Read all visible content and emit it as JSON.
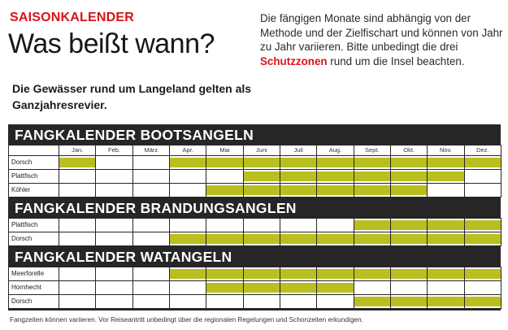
{
  "kicker": "SAISONKALENDER",
  "headline": "Was beißt wann?",
  "lead": "Die Gewässer rund um Langeland gelten als Ganzjahresrevier.",
  "info": {
    "before": "Die fängigen Monate sind abhängig von der Methode und der Zielfischart und können von Jahr zu Jahr variieren. Bitte unbedingt die drei ",
    "highlight": "Schutzzonen",
    "after": " rund um die Insel beachten."
  },
  "colors": {
    "accent": "#d7141b",
    "bar": "#b9bf1f",
    "band": "#262626"
  },
  "months": [
    "Jan.",
    "Feb.",
    "März",
    "Apr.",
    "Mai",
    "Juni",
    "Juli",
    "Aug.",
    "Sept.",
    "Okt.",
    "Nov.",
    "Dez."
  ],
  "sections": [
    {
      "title": "FANGKALENDER BOOTSANGELN",
      "show_months": true,
      "rows": [
        {
          "fish": "Dorsch",
          "months": [
            1,
            0,
            0,
            1,
            1,
            1,
            1,
            1,
            1,
            1,
            1,
            1
          ]
        },
        {
          "fish": "Plattfisch",
          "months": [
            0,
            0,
            0,
            0,
            0,
            1,
            1,
            1,
            1,
            1,
            1,
            0
          ]
        },
        {
          "fish": "Köhler",
          "months": [
            0,
            0,
            0,
            0,
            1,
            1,
            1,
            1,
            1,
            1,
            0,
            0
          ]
        }
      ]
    },
    {
      "title": "FANGKALENDER BRANDUNGSANGLEN",
      "show_months": false,
      "rows": [
        {
          "fish": "Plattfisch",
          "months": [
            0,
            0,
            0,
            0,
            0,
            0,
            0,
            0,
            1,
            1,
            1,
            1
          ]
        },
        {
          "fish": "Dorsch",
          "months": [
            0,
            0,
            0,
            1,
            1,
            1,
            1,
            1,
            1,
            1,
            1,
            1
          ]
        }
      ]
    },
    {
      "title": "FANGKALENDER WATANGELN",
      "show_months": false,
      "rows": [
        {
          "fish": "Meerforelle",
          "months": [
            0,
            0,
            0,
            1,
            1,
            1,
            1,
            1,
            1,
            1,
            1,
            1
          ]
        },
        {
          "fish": "Hornhecht",
          "months": [
            0,
            0,
            0,
            0,
            1,
            1,
            1,
            1,
            0,
            0,
            0,
            0
          ]
        },
        {
          "fish": "Dorsch",
          "months": [
            0,
            0,
            0,
            0,
            0,
            0,
            0,
            0,
            1,
            1,
            1,
            1
          ]
        }
      ]
    }
  ],
  "footnote": "Fangzeiten können variieren. Vor Reiseantritt unbedingt über die regionalen Regelungen und Schonzeiten erkundigen."
}
